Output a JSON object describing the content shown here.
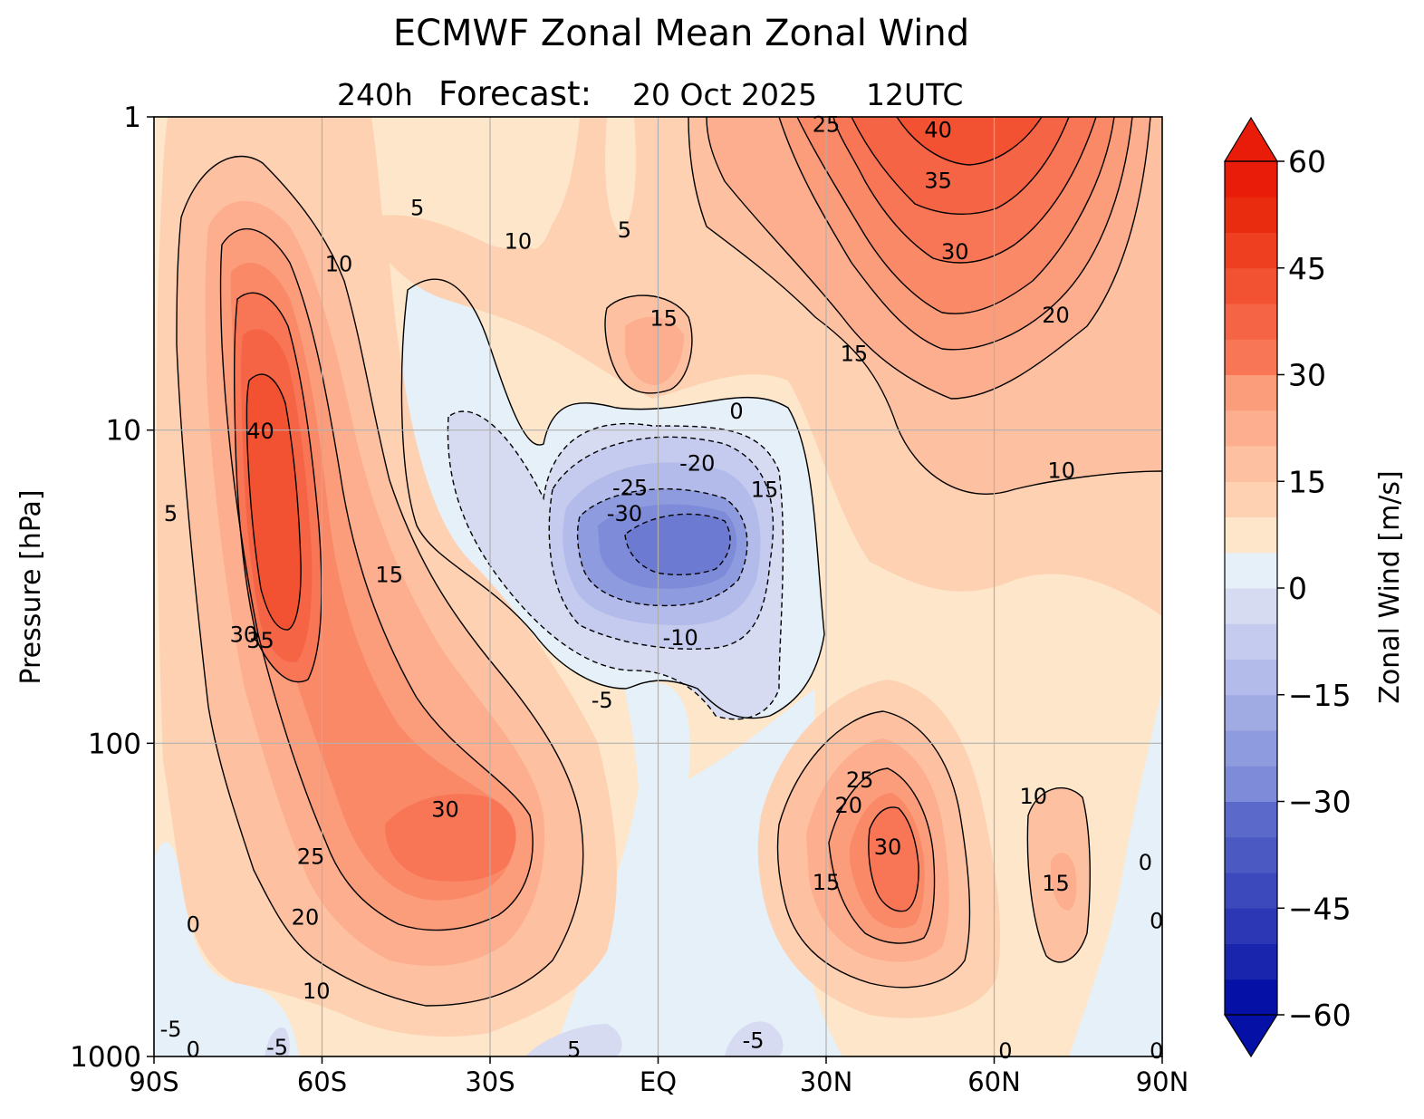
{
  "chart_data": {
    "type": "contour",
    "title": "ECMWF Zonal Mean Zonal Wind",
    "subtitle_lead": "240h",
    "subtitle_forecast": "Forecast:",
    "subtitle_date": "20 Oct 2025",
    "subtitle_time": "12UTC",
    "xlabel": "",
    "ylabel": "Pressure [hPa]",
    "x_ticks": [
      {
        "value": -90,
        "label": "90S"
      },
      {
        "value": -60,
        "label": "60S"
      },
      {
        "value": -30,
        "label": "30S"
      },
      {
        "value": 0,
        "label": "EQ"
      },
      {
        "value": 30,
        "label": "30N"
      },
      {
        "value": 60,
        "label": "60N"
      },
      {
        "value": 90,
        "label": "90N"
      }
    ],
    "y_scale": "log",
    "y_ticks": [
      {
        "value": 1,
        "label": "1"
      },
      {
        "value": 10,
        "label": "10"
      },
      {
        "value": 100,
        "label": "100"
      },
      {
        "value": 1000,
        "label": "1000"
      }
    ],
    "xlim": [
      -90,
      90
    ],
    "ylim": [
      1000,
      1
    ],
    "grid": true,
    "colorbar": {
      "label": "Zonal Wind [m/s]",
      "vmin": -60,
      "vmax": 60,
      "step": 5,
      "extend": "both",
      "tick_labels": [
        {
          "value": 60,
          "label": "60"
        },
        {
          "value": 45,
          "label": "45"
        },
        {
          "value": 30,
          "label": "30"
        },
        {
          "value": 15,
          "label": "15"
        },
        {
          "value": 0,
          "label": "0"
        },
        {
          "value": -15,
          "label": "−15"
        },
        {
          "value": -30,
          "label": "−30"
        },
        {
          "value": -45,
          "label": "−45"
        },
        {
          "value": -60,
          "label": "−60"
        }
      ],
      "band_colors": [
        "#0511a6",
        "#1a25ae",
        "#2b37b5",
        "#3c49bc",
        "#4b5ac3",
        "#5b6aca",
        "#6c7ad1",
        "#7d8bd8",
        "#8e9bde",
        "#a0abe4",
        "#b2bbe9",
        "#c4cbee",
        "#d6dbf2",
        "#e6f0f8",
        "#fde6c9",
        "#fdd1b2",
        "#fdc0a0",
        "#fcae8e",
        "#fb9c7b",
        "#fa8968",
        "#f87656",
        "#f56444",
        "#f25232",
        "#ee3f20",
        "#e92b10",
        "#e81c08"
      ],
      "under_color": "#0511a6",
      "over_color": "#e81c08"
    },
    "contour_labels": [
      {
        "lat": 30,
        "p": 1.06,
        "text": "25"
      },
      {
        "lat": 50,
        "p": 1.1,
        "text": "40"
      },
      {
        "lat": 50,
        "p": 1.6,
        "text": "35"
      },
      {
        "lat": 53,
        "p": 2.7,
        "text": "30"
      },
      {
        "lat": 71,
        "p": 4.3,
        "text": "20"
      },
      {
        "lat": 35,
        "p": 5.7,
        "text": "15"
      },
      {
        "lat": 72,
        "p": 13.5,
        "text": "10"
      },
      {
        "lat": 1,
        "p": 4.4,
        "text": "15"
      },
      {
        "lat": 14,
        "p": 8.7,
        "text": "0"
      },
      {
        "lat": -43,
        "p": 1.95,
        "text": "5"
      },
      {
        "lat": -25,
        "p": 2.5,
        "text": "10"
      },
      {
        "lat": -6,
        "p": 2.3,
        "text": "5"
      },
      {
        "lat": -57,
        "p": 2.95,
        "text": "10"
      },
      {
        "lat": -71,
        "p": 10.1,
        "text": "40"
      },
      {
        "lat": -87,
        "p": 18.5,
        "text": "5"
      },
      {
        "lat": -48,
        "p": 29.0,
        "text": "15"
      },
      {
        "lat": -74,
        "p": 45.0,
        "text": "30"
      },
      {
        "lat": -71,
        "p": 47.0,
        "text": "35"
      },
      {
        "lat": 7,
        "p": 12.8,
        "text": "-20"
      },
      {
        "lat": -5,
        "p": 15.3,
        "text": "-25"
      },
      {
        "lat": -6,
        "p": 18.5,
        "text": "-30"
      },
      {
        "lat": 19,
        "p": 15.5,
        "text": "15"
      },
      {
        "lat": 4,
        "p": 46.0,
        "text": "-10"
      },
      {
        "lat": -10,
        "p": 73.0,
        "text": "-5"
      },
      {
        "lat": -38,
        "p": 163.0,
        "text": "30"
      },
      {
        "lat": -62,
        "p": 230.0,
        "text": "25"
      },
      {
        "lat": -63,
        "p": 360.0,
        "text": "20"
      },
      {
        "lat": -61,
        "p": 620.0,
        "text": "10"
      },
      {
        "lat": -83,
        "p": 380.0,
        "text": "0"
      },
      {
        "lat": -87,
        "p": 820.0,
        "text": "-5"
      },
      {
        "lat": -83,
        "p": 950.0,
        "text": "0"
      },
      {
        "lat": -68,
        "p": 935.0,
        "text": "-5"
      },
      {
        "lat": -15,
        "p": 950.0,
        "text": "5"
      },
      {
        "lat": 17,
        "p": 890.0,
        "text": "-5"
      },
      {
        "lat": 36,
        "p": 131.0,
        "text": "25"
      },
      {
        "lat": 34,
        "p": 158.0,
        "text": "20"
      },
      {
        "lat": 30,
        "p": 278.0,
        "text": "15"
      },
      {
        "lat": 41,
        "p": 215.0,
        "text": "30"
      },
      {
        "lat": 67,
        "p": 148.0,
        "text": "10"
      },
      {
        "lat": 71,
        "p": 280.0,
        "text": "15"
      },
      {
        "lat": 87,
        "p": 240.0,
        "text": "0"
      },
      {
        "lat": 89,
        "p": 370.0,
        "text": "0"
      },
      {
        "lat": 62,
        "p": 960.0,
        "text": "0"
      },
      {
        "lat": 89,
        "p": 960.0,
        "text": "0"
      }
    ]
  }
}
